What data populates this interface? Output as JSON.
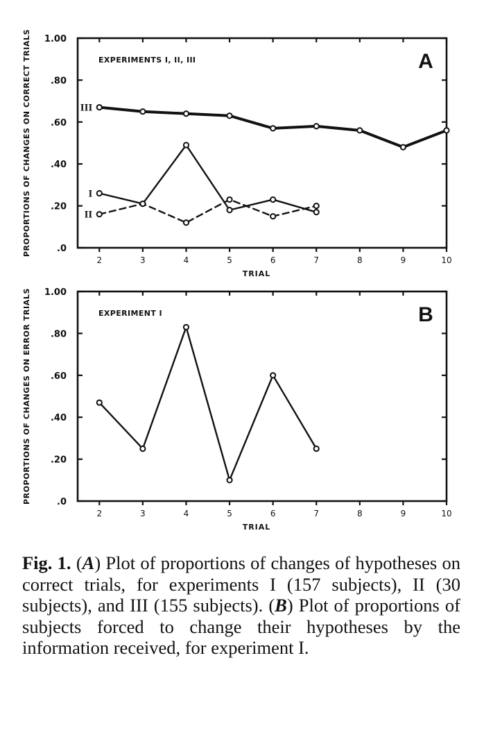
{
  "chart_data": [
    {
      "type": "line",
      "panel_letter": "A",
      "annotation": "EXPERIMENTS I, II, III",
      "xlabel": "TRIAL",
      "ylabel": "PROPORTIONS OF CHANGES ON CORRECT TRIALS",
      "xlim": [
        1.5,
        10
      ],
      "ylim": [
        0,
        1.0
      ],
      "x_ticks": [
        2,
        3,
        4,
        5,
        6,
        7,
        8,
        9,
        10
      ],
      "y_ticks": [
        ".0",
        ".20",
        ".40",
        ".60",
        ".80",
        "1.00"
      ],
      "series": [
        {
          "name": "III",
          "line_style": "solid",
          "stroke_width": "heavy",
          "x": [
            2,
            3,
            4,
            5,
            6,
            7,
            8,
            9,
            10
          ],
          "values": [
            0.67,
            0.65,
            0.64,
            0.63,
            0.57,
            0.58,
            0.56,
            0.48,
            0.56
          ]
        },
        {
          "name": "I",
          "line_style": "solid",
          "stroke_width": "normal",
          "x": [
            2,
            3,
            4,
            5,
            6,
            7
          ],
          "values": [
            0.26,
            0.21,
            0.49,
            0.18,
            0.23,
            0.17
          ]
        },
        {
          "name": "II",
          "line_style": "dashed",
          "stroke_width": "normal",
          "x": [
            2,
            3,
            4,
            5,
            6,
            7
          ],
          "values": [
            0.16,
            0.21,
            0.12,
            0.23,
            0.15,
            0.2
          ]
        }
      ]
    },
    {
      "type": "line",
      "panel_letter": "B",
      "annotation": "EXPERIMENT I",
      "xlabel": "TRIAL",
      "ylabel": "PROPORTIONS OF CHANGES ON ERROR TRIALS",
      "xlim": [
        1.5,
        10
      ],
      "ylim": [
        0,
        1.0
      ],
      "x_ticks": [
        2,
        3,
        4,
        5,
        6,
        7,
        8,
        9,
        10
      ],
      "y_ticks": [
        ".0",
        ".20",
        ".40",
        ".60",
        ".80",
        "1.00"
      ],
      "series": [
        {
          "name": "",
          "line_style": "solid",
          "stroke_width": "normal",
          "x": [
            2,
            3,
            4,
            5,
            6,
            7
          ],
          "values": [
            0.47,
            0.25,
            0.83,
            0.1,
            0.6,
            0.25
          ]
        }
      ]
    }
  ],
  "caption": {
    "fig_label": "Fig. 1.",
    "a_marker": "A",
    "text_a": " Plot of proportions of changes of hypotheses on correct trials, for experiments I (157 subjects), II (30 subjects), and III (155 subjects). ",
    "b_marker": "B",
    "text_b": " Plot of proportions of subjects forced to change their hypotheses by the information received, for experiment I."
  }
}
